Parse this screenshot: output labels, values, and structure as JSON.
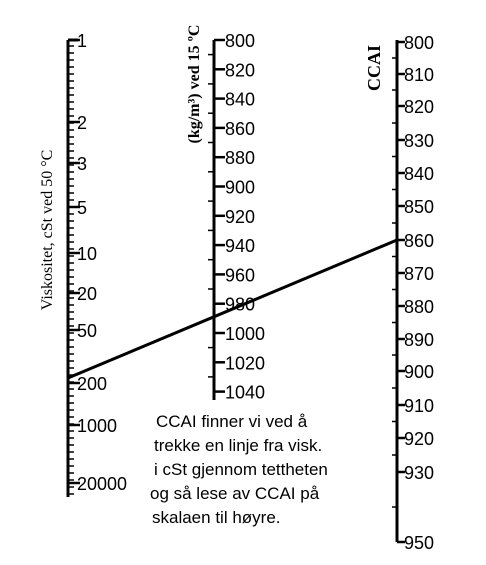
{
  "scales": {
    "viscosity": {
      "title": "Viskositet, cSt ved 50 °C",
      "labels": [
        "1",
        "2",
        "3",
        "5",
        "10",
        "20",
        "50",
        "200",
        "1000",
        "20000"
      ]
    },
    "density": {
      "title": "(kg/m³) ved 15 ºC",
      "labels": [
        "800",
        "820",
        "840",
        "860",
        "880",
        "900",
        "920",
        "940",
        "960",
        "980",
        "1000",
        "1020",
        "1040"
      ]
    },
    "ccai": {
      "title": "CCAI",
      "labels": [
        "800",
        "810",
        "820",
        "830",
        "840",
        "850",
        "860",
        "870",
        "880",
        "890",
        "900",
        "910",
        "920",
        "930",
        "950"
      ]
    }
  },
  "example_line": {
    "viscosity": "200",
    "density": "990",
    "ccai": "860"
  },
  "caption": {
    "lines": [
      "CCAI finner vi ved å",
      "trekke en linje fra visk.",
      "i cSt gjennom tettheten",
      "og så lese av CCAI på",
      "skalaen til høyre."
    ]
  }
}
